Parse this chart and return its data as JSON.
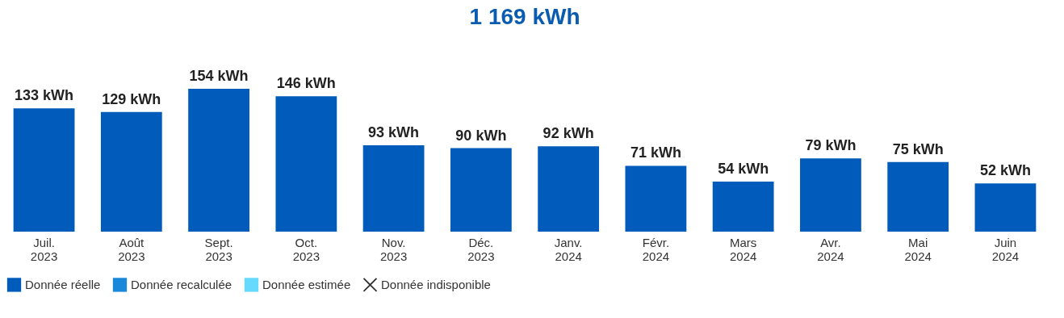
{
  "chart_data": {
    "type": "bar",
    "title": "1 169 kWh",
    "categories": [
      "Juil. 2023",
      "Août 2023",
      "Sept. 2023",
      "Oct. 2023",
      "Nov. 2023",
      "Déc. 2023",
      "Janv. 2024",
      "Févr. 2024",
      "Mars 2024",
      "Avr. 2024",
      "Mai 2024",
      "Juin 2024"
    ],
    "series": [
      {
        "name": "Donnée réelle",
        "color": "#005bbb",
        "marker": "square",
        "values": [
          133,
          129,
          154,
          146,
          93,
          90,
          92,
          71,
          54,
          79,
          75,
          52
        ],
        "value_labels": [
          "133 kWh",
          "129 kWh",
          "154 kWh",
          "146 kWh",
          "93 kWh",
          "90 kWh",
          "92 kWh",
          "71 kWh",
          "54 kWh",
          "79 kWh",
          "75 kWh",
          "52 kWh"
        ]
      },
      {
        "name": "Donnée recalculée",
        "color": "#1a88d8",
        "marker": "square",
        "values": [
          null,
          null,
          null,
          null,
          null,
          null,
          null,
          null,
          null,
          null,
          null,
          null
        ]
      },
      {
        "name": "Donnée estimée",
        "color": "#66d9ff",
        "marker": "square",
        "values": [
          null,
          null,
          null,
          null,
          null,
          null,
          null,
          null,
          null,
          null,
          null,
          null
        ]
      },
      {
        "name": "Donnée indisponible",
        "color": "#333333",
        "marker": "cross",
        "values": [
          null,
          null,
          null,
          null,
          null,
          null,
          null,
          null,
          null,
          null,
          null,
          null
        ]
      }
    ],
    "legend": "bottom"
  }
}
